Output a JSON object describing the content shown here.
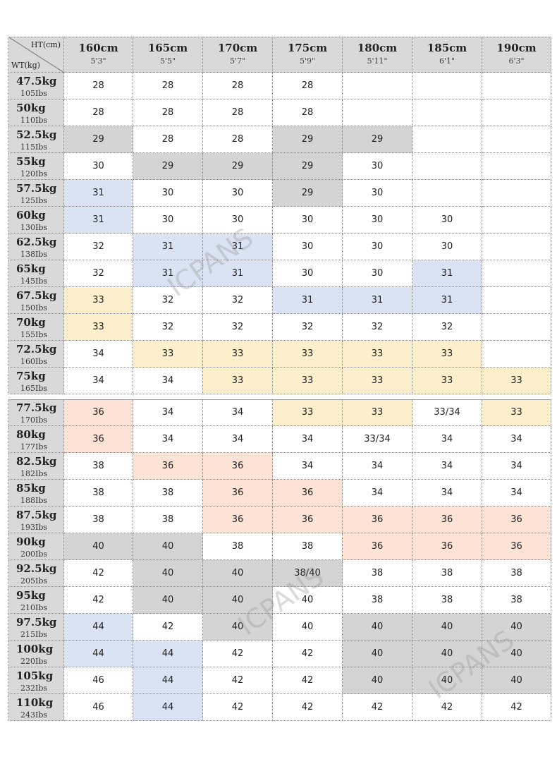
{
  "corner": {
    "top": "HT(cm)",
    "bottom": "WT(kg)"
  },
  "columns": [
    {
      "cm": "160cm",
      "ft": "5'3\""
    },
    {
      "cm": "165cm",
      "ft": "5'5\""
    },
    {
      "cm": "170cm",
      "ft": "5'7\""
    },
    {
      "cm": "175cm",
      "ft": "5'9\""
    },
    {
      "cm": "180cm",
      "ft": "5'11\""
    },
    {
      "cm": "185cm",
      "ft": "6'1\""
    },
    {
      "cm": "190cm",
      "ft": "6'3\""
    }
  ],
  "rows": [
    {
      "kg": "47.5kg",
      "lbs": "105Ibs",
      "sizes": [
        28,
        28,
        28,
        28,
        null,
        null,
        null
      ]
    },
    {
      "kg": "50kg",
      "lbs": "110Ibs",
      "sizes": [
        28,
        28,
        28,
        28,
        null,
        null,
        null
      ]
    },
    {
      "kg": "52.5kg",
      "lbs": "115Ibs",
      "sizes": [
        29,
        28,
        28,
        29,
        29,
        null,
        null
      ]
    },
    {
      "kg": "55kg",
      "lbs": "120Ibs",
      "sizes": [
        30,
        29,
        29,
        29,
        30,
        null,
        null
      ]
    },
    {
      "kg": "57.5kg",
      "lbs": "125Ibs",
      "sizes": [
        31,
        30,
        30,
        29,
        30,
        null,
        null
      ]
    },
    {
      "kg": "60kg",
      "lbs": "130Ibs",
      "sizes": [
        31,
        30,
        30,
        30,
        30,
        30,
        null
      ]
    },
    {
      "kg": "62.5kg",
      "lbs": "138Ibs",
      "sizes": [
        32,
        31,
        31,
        30,
        30,
        30,
        null
      ]
    },
    {
      "kg": "65kg",
      "lbs": "145Ibs",
      "sizes": [
        32,
        31,
        31,
        30,
        30,
        31,
        null
      ]
    },
    {
      "kg": "67.5kg",
      "lbs": "150Ibs",
      "sizes": [
        33,
        32,
        32,
        31,
        31,
        31,
        null
      ]
    },
    {
      "kg": "70kg",
      "lbs": "155Ibs",
      "sizes": [
        33,
        32,
        32,
        32,
        32,
        32,
        null
      ]
    },
    {
      "kg": "72.5kg",
      "lbs": "160Ibs",
      "sizes": [
        34,
        33,
        33,
        33,
        33,
        33,
        null
      ]
    },
    {
      "kg": "75kg",
      "lbs": "165Ibs",
      "sizes": [
        34,
        34,
        33,
        33,
        33,
        33,
        33
      ]
    },
    {
      "kg": "77.5kg",
      "lbs": "170Ibs",
      "sizes": [
        36,
        34,
        34,
        33,
        33,
        "33/34",
        33
      ]
    },
    {
      "kg": "80kg",
      "lbs": "177Ibs",
      "sizes": [
        36,
        34,
        34,
        34,
        "33/34",
        34,
        34
      ]
    },
    {
      "kg": "82.5kg",
      "lbs": "182Ibs",
      "sizes": [
        38,
        36,
        36,
        34,
        34,
        34,
        34
      ]
    },
    {
      "kg": "85kg",
      "lbs": "188Ibs",
      "sizes": [
        38,
        38,
        36,
        36,
        34,
        34,
        34
      ]
    },
    {
      "kg": "87.5kg",
      "lbs": "193Ibs",
      "sizes": [
        38,
        38,
        36,
        36,
        36,
        36,
        36
      ]
    },
    {
      "kg": "90kg",
      "lbs": "200Ibs",
      "sizes": [
        40,
        40,
        38,
        38,
        36,
        36,
        36
      ]
    },
    {
      "kg": "92.5kg",
      "lbs": "205Ibs",
      "sizes": [
        42,
        40,
        40,
        "38/40",
        38,
        38,
        38
      ]
    },
    {
      "kg": "95kg",
      "lbs": "210Ibs",
      "sizes": [
        42,
        40,
        40,
        40,
        38,
        38,
        38
      ]
    },
    {
      "kg": "97.5kg",
      "lbs": "215Ibs",
      "sizes": [
        44,
        42,
        40,
        40,
        40,
        40,
        40
      ]
    },
    {
      "kg": "100kg",
      "lbs": "220Ibs",
      "sizes": [
        44,
        44,
        42,
        42,
        40,
        40,
        40
      ]
    },
    {
      "kg": "105kg",
      "lbs": "232Ibs",
      "sizes": [
        46,
        44,
        42,
        42,
        40,
        40,
        40
      ]
    },
    {
      "kg": "110kg",
      "lbs": "243Ibs",
      "sizes": [
        46,
        44,
        42,
        42,
        42,
        42,
        42
      ]
    }
  ],
  "watermark": "ICPANS"
}
